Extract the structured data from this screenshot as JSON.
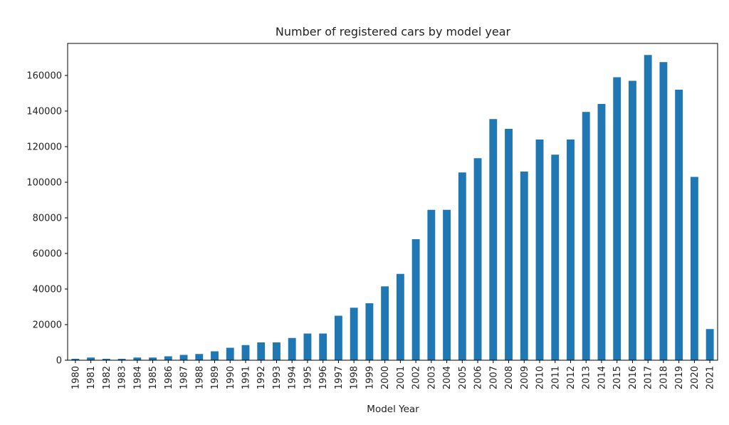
{
  "chart_data": {
    "type": "bar",
    "title": "Number of registered cars by model year",
    "xlabel": "Model Year",
    "ylabel": "",
    "ylim": [
      0,
      178000
    ],
    "yticks": [
      0,
      20000,
      40000,
      60000,
      80000,
      100000,
      120000,
      140000,
      160000
    ],
    "grid": false,
    "legend": "none",
    "bar_color": "#1f77b4",
    "categories": [
      "1980",
      "1981",
      "1982",
      "1983",
      "1984",
      "1985",
      "1986",
      "1987",
      "1988",
      "1989",
      "1990",
      "1991",
      "1992",
      "1993",
      "1994",
      "1995",
      "1996",
      "1997",
      "1998",
      "1999",
      "2000",
      "2001",
      "2002",
      "2003",
      "2004",
      "2005",
      "2006",
      "2007",
      "2008",
      "2009",
      "2010",
      "2011",
      "2012",
      "2013",
      "2014",
      "2015",
      "2016",
      "2017",
      "2018",
      "2019",
      "2020",
      "2021"
    ],
    "values": [
      800,
      1500,
      800,
      800,
      1500,
      1500,
      2200,
      3000,
      3500,
      5000,
      7000,
      8500,
      10000,
      10000,
      12500,
      15000,
      15000,
      25000,
      29500,
      32000,
      41500,
      48500,
      68000,
      84500,
      84500,
      105500,
      113500,
      135500,
      130000,
      106000,
      124000,
      115500,
      124000,
      139500,
      144000,
      159000,
      157000,
      171500,
      167500,
      152000,
      103000,
      17500
    ]
  }
}
